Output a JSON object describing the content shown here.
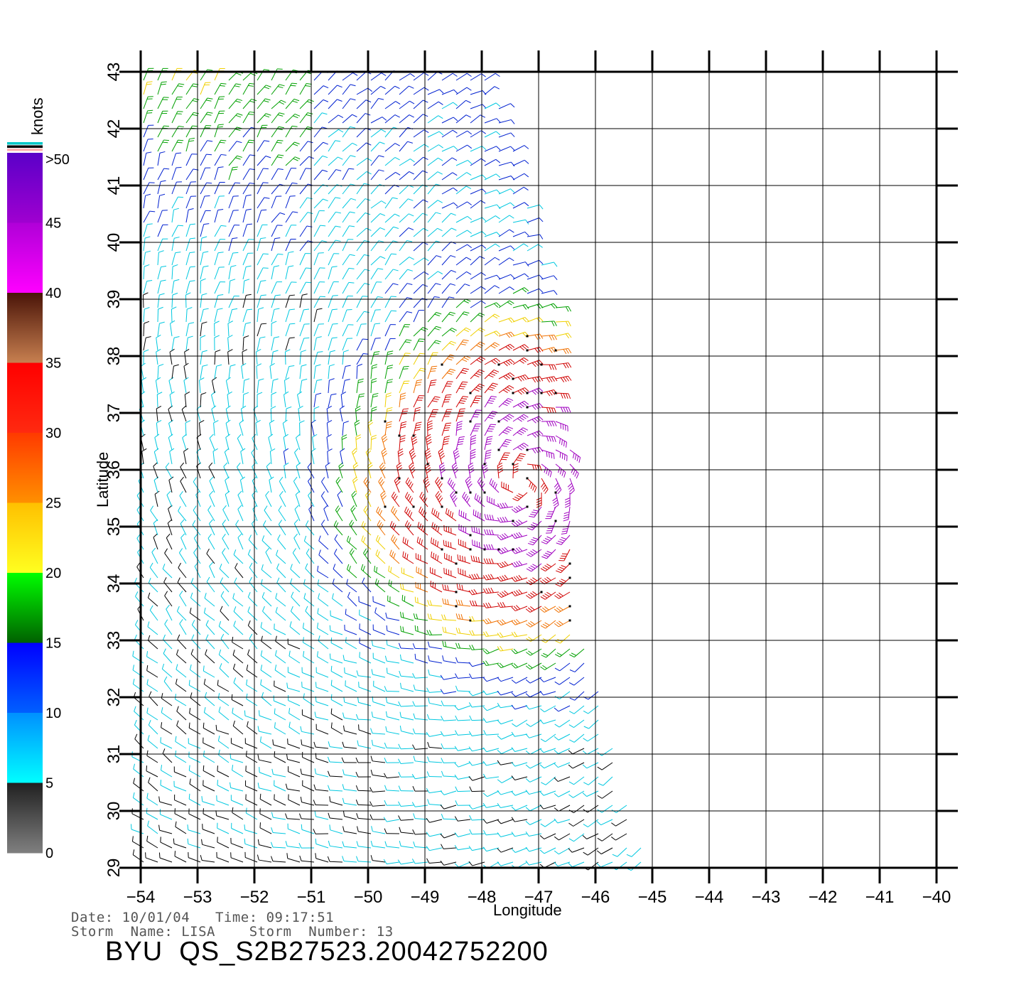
{
  "chart_data": {
    "type": "wind-barb",
    "ylabel": "Latitude",
    "xlabel": "Longitude",
    "x_ticks": [
      -54,
      -53,
      -52,
      -51,
      -50,
      -49,
      -48,
      -47,
      -46,
      -45,
      -44,
      -43,
      -42,
      -41,
      -40
    ],
    "y_ticks": [
      29,
      30,
      31,
      32,
      33,
      34,
      35,
      36,
      37,
      38,
      39,
      40,
      41,
      42,
      43
    ],
    "x_tick_labels": [
      "−54",
      "−53",
      "−52",
      "−51",
      "−50",
      "−49",
      "−48",
      "−47",
      "−46",
      "−45",
      "−44",
      "−43",
      "−42",
      "−41",
      "−40"
    ],
    "y_tick_labels": [
      "29",
      "30",
      "31",
      "32",
      "33",
      "34",
      "35",
      "36",
      "37",
      "38",
      "39",
      "40",
      "41",
      "42",
      "43"
    ],
    "xlim": [
      -54,
      -40
    ],
    "ylim": [
      29,
      43
    ],
    "grid": true,
    "storm_center": {
      "lon": -47.3,
      "lat": 35.8
    },
    "colorbar": {
      "title": "knots",
      "labels": [
        ">50",
        "45",
        "40",
        "35",
        "30",
        "25",
        "20",
        "15",
        "10",
        "5",
        "0"
      ],
      "bands": [
        {
          "from": 50,
          "to": 45,
          "top": "#5a00c8",
          "bottom": "#a000d0"
        },
        {
          "from": 45,
          "to": 40,
          "top": "#b000d8",
          "bottom": "#ff00ff"
        },
        {
          "from": 40,
          "to": 35,
          "top": "#4a1408",
          "bottom": "#c88050"
        },
        {
          "from": 35,
          "to": 30,
          "top": "#ff0000",
          "bottom": "#ff2a10"
        },
        {
          "from": 30,
          "to": 25,
          "top": "#ff3a00",
          "bottom": "#ff9000"
        },
        {
          "from": 25,
          "to": 20,
          "top": "#ffc000",
          "bottom": "#ffff20"
        },
        {
          "from": 20,
          "to": 15,
          "top": "#00ff00",
          "bottom": "#006000"
        },
        {
          "from": 15,
          "to": 10,
          "top": "#0000ff",
          "bottom": "#0060ff"
        },
        {
          "from": 10,
          "to": 5,
          "top": "#0090ff",
          "bottom": "#00ffff"
        },
        {
          "from": 5,
          "to": 0,
          "top": "#202020",
          "bottom": "#808080"
        }
      ],
      "extra_stripes": [
        "#00c8c8",
        "#000000",
        "#ffb0b0"
      ]
    },
    "speed_colors": {
      "calm": "#000000",
      "light": "#00c8e0",
      "moderate": "#0020d0",
      "fresh": "#00a000",
      "strong": "#f0d000",
      "gale": "#f07000",
      "storm": "#d00000",
      "extreme": "#a000c0"
    }
  },
  "footer": {
    "date_line": "Date: 10/01/04   Time: 09:17:51",
    "storm_line": "Storm  Name: LISA    Storm  Number: 13",
    "title": "BYU  QS_S2B27523.20042752200"
  }
}
